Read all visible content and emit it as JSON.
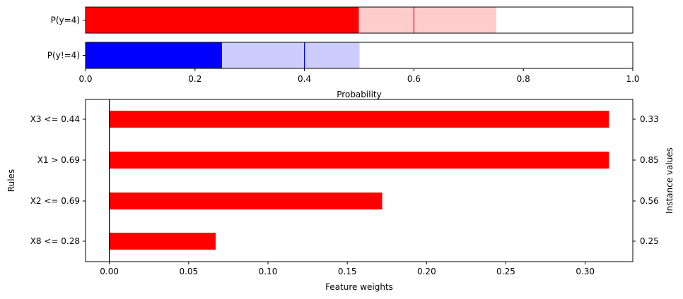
{
  "chart_data": [
    {
      "type": "bar",
      "orientation": "horizontal",
      "xlabel": "Probability",
      "xlim": [
        0,
        1
      ],
      "xticks": [
        0,
        0.2,
        0.4,
        0.6,
        0.8,
        1.0
      ],
      "xtick_labels": [
        "0.0",
        "0.2",
        "0.4",
        "0.6",
        "0.8",
        "1.0"
      ],
      "rows": [
        {
          "label": "P(y=4)",
          "value": 0.5,
          "interval": [
            0.5,
            0.75
          ],
          "marker": 0.6,
          "color": "#ff0000",
          "band_color": "#ffcccc"
        },
        {
          "label": "P(y!=4)",
          "value": 0.25,
          "interval": [
            0.25,
            0.5
          ],
          "marker": 0.4,
          "color": "#0000ff",
          "band_color": "#ccccff"
        }
      ]
    },
    {
      "type": "bar",
      "orientation": "horizontal",
      "xlabel": "Feature weights",
      "ylabel": "Rules",
      "y2label": "Instance values",
      "xlim": [
        -0.015,
        0.33
      ],
      "xticks": [
        0,
        0.05,
        0.1,
        0.15,
        0.2,
        0.25,
        0.3
      ],
      "xtick_labels": [
        "0.00",
        "0.05",
        "0.10",
        "0.15",
        "0.20",
        "0.25",
        "0.30"
      ],
      "bar_color": "#ff0000",
      "categories": [
        "X3 <= 0.44",
        "X1 > 0.69",
        "X2 <= 0.69",
        "X8 <= 0.28"
      ],
      "values": [
        0.315,
        0.315,
        0.172,
        0.067
      ],
      "instance_values": [
        "0.33",
        "0.85",
        "0.56",
        "0.25"
      ]
    }
  ]
}
